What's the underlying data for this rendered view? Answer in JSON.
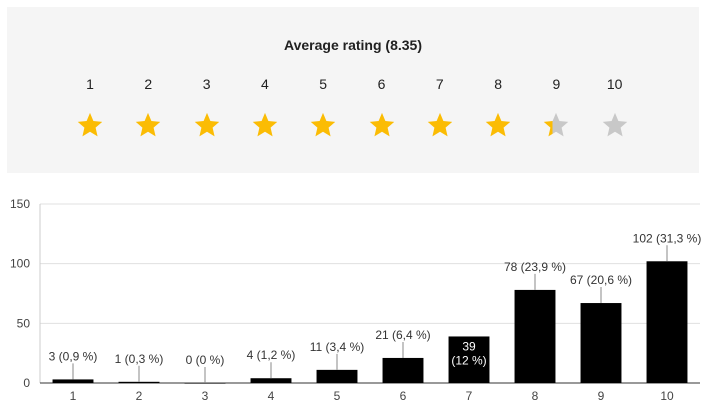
{
  "rating": {
    "title": "Average rating (8.35)",
    "value": 8.35,
    "max": 10,
    "star_labels": [
      "1",
      "2",
      "3",
      "4",
      "5",
      "6",
      "7",
      "8",
      "9",
      "10"
    ],
    "filled_color": "#fbbc04",
    "empty_color": "#c8c8c8"
  },
  "chart_data": {
    "type": "bar",
    "categories": [
      "1",
      "2",
      "3",
      "4",
      "5",
      "6",
      "7",
      "8",
      "9",
      "10"
    ],
    "values": [
      3,
      1,
      0,
      4,
      11,
      21,
      39,
      78,
      67,
      102
    ],
    "data_labels": [
      "3 (0,9 %)",
      "1 (0,3 %)",
      "0 (0 %)",
      "4 (1,2 %)",
      "11 (3,4 %)",
      "21 (6,4 %)",
      [
        "39",
        "(12 %)"
      ],
      "78 (23,9 %)",
      "67 (20,6 %)",
      "102 (31,3 %)"
    ],
    "label_inside": [
      false,
      false,
      false,
      false,
      false,
      false,
      true,
      false,
      false,
      false
    ],
    "yticks": [
      "0",
      "50",
      "100",
      "150"
    ],
    "ylim": [
      0,
      150
    ],
    "grid": true,
    "bar_color": "#000000"
  }
}
